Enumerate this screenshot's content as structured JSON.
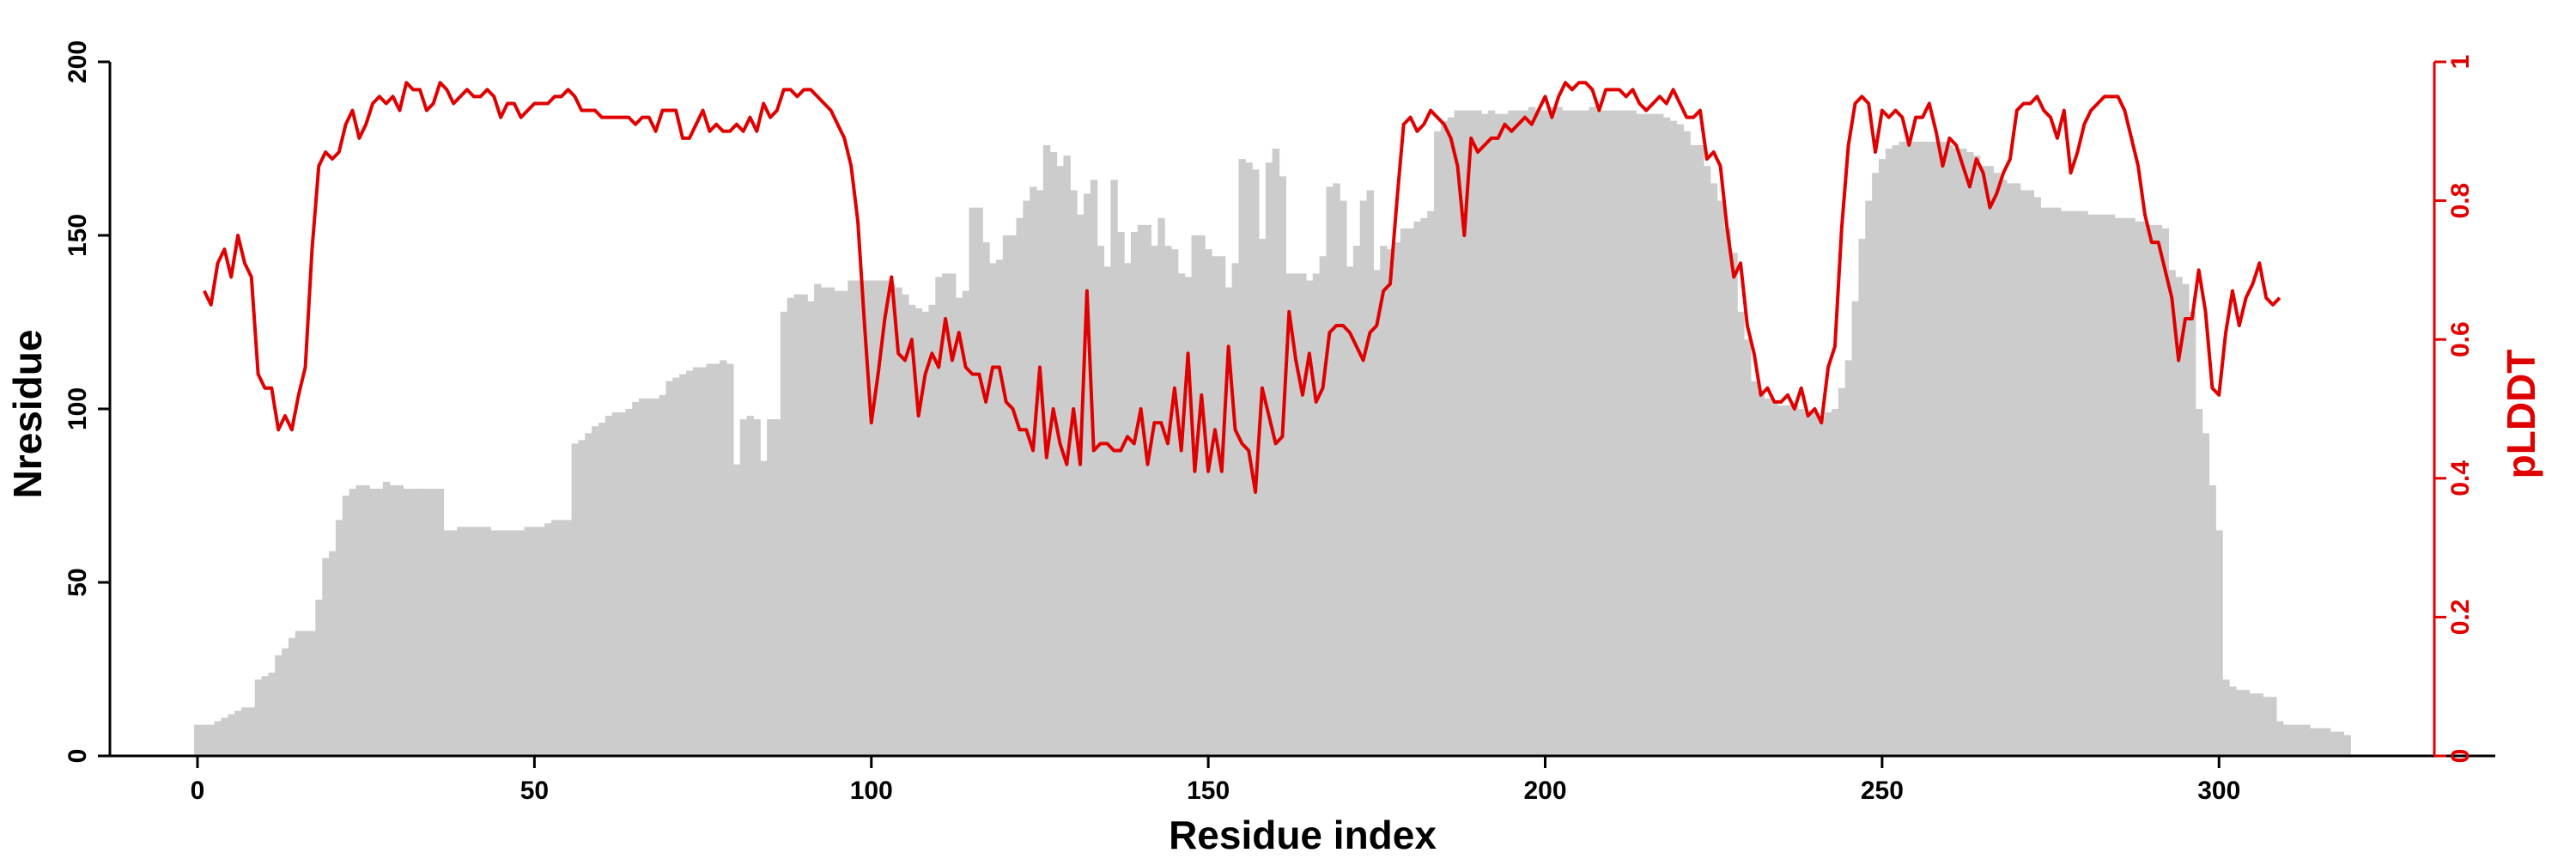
{
  "chart_data": {
    "type": "bar+line",
    "xlabel": "Residue index",
    "ylabel": "Nresidue",
    "y2label": "pLDDT",
    "xlim": [
      -13,
      341
    ],
    "xticks": [
      0,
      50,
      100,
      150,
      200,
      250,
      300
    ],
    "ylim": [
      0,
      200
    ],
    "yticks": [
      0,
      50,
      100,
      150,
      200
    ],
    "y2lim": [
      0,
      1
    ],
    "y2ticks": [
      0,
      0.2,
      0.4,
      0.6,
      0.8,
      1
    ],
    "y2ticklabels": [
      "0",
      "0.2",
      "0.4",
      "0.6",
      "0.8",
      "1"
    ],
    "colors": {
      "bars": "#cccccc",
      "line": "#e00000",
      "axis_left": "#000000",
      "axis_right": "#e00000"
    },
    "bars": {
      "name": "Nresidue",
      "x_start": 0,
      "values": [
        9,
        9,
        9,
        10,
        11,
        12,
        13,
        14,
        14,
        22,
        23,
        24,
        29,
        31,
        34,
        36,
        36,
        36,
        45,
        57,
        59,
        68,
        75,
        77,
        78,
        78,
        77,
        77,
        79,
        78,
        78,
        77,
        77,
        77,
        77,
        77,
        77,
        65,
        65,
        66,
        66,
        66,
        66,
        66,
        65,
        65,
        65,
        65,
        65,
        66,
        66,
        66,
        67,
        68,
        68,
        68,
        90,
        91,
        93,
        95,
        96,
        98,
        99,
        99,
        100,
        102,
        103,
        103,
        103,
        104,
        108,
        109,
        110,
        111,
        112,
        112,
        113,
        113,
        114,
        113,
        84,
        97,
        98,
        97,
        85,
        97,
        97,
        128,
        132,
        133,
        133,
        131,
        136,
        135,
        135,
        134,
        134,
        137,
        137,
        137,
        137,
        137,
        137,
        136,
        135,
        133,
        130,
        129,
        128,
        130,
        138,
        139,
        139,
        132,
        134,
        158,
        158,
        148,
        142,
        143,
        150,
        150,
        155,
        160,
        164,
        163,
        176,
        174,
        170,
        173,
        163,
        156,
        162,
        166,
        147,
        141,
        166,
        151,
        142,
        151,
        153,
        153,
        147,
        155,
        147,
        146,
        139,
        138,
        150,
        150,
        146,
        144,
        144,
        135,
        142,
        172,
        171,
        169,
        149,
        171,
        175,
        167,
        139,
        139,
        139,
        137,
        139,
        144,
        164,
        165,
        160,
        141,
        147,
        160,
        163,
        140,
        147,
        146,
        148,
        152,
        152,
        154,
        155,
        157,
        180,
        183,
        184,
        186,
        186,
        186,
        186,
        185,
        186,
        185,
        185,
        186,
        186,
        186,
        187,
        186,
        186,
        187,
        187,
        186,
        186,
        186,
        186,
        187,
        186,
        186,
        186,
        186,
        186,
        186,
        185,
        185,
        185,
        185,
        184,
        183,
        182,
        180,
        176,
        176,
        170,
        165,
        160,
        152,
        145,
        128,
        120,
        108,
        105,
        103,
        102,
        101,
        101,
        101,
        100,
        99,
        99,
        98,
        99,
        100,
        106,
        114,
        131,
        149,
        160,
        168,
        172,
        175,
        176,
        177,
        177,
        177,
        177,
        177,
        177,
        177,
        176,
        175,
        175,
        174,
        173,
        170,
        170,
        168,
        166,
        165,
        165,
        163,
        163,
        161,
        158,
        158,
        158,
        157,
        157,
        157,
        157,
        156,
        156,
        156,
        156,
        155,
        155,
        155,
        154,
        154,
        153,
        153,
        152,
        140,
        138,
        136,
        128,
        100,
        93,
        78,
        65,
        22,
        20,
        19,
        19,
        18,
        18,
        17,
        17,
        10,
        9,
        9,
        9,
        9,
        8,
        8,
        8,
        7,
        7,
        6
      ]
    },
    "series": [
      {
        "name": "pLDDT",
        "x_start": 1,
        "values": [
          0.67,
          0.65,
          0.71,
          0.73,
          0.69,
          0.75,
          0.71,
          0.69,
          0.55,
          0.53,
          0.53,
          0.47,
          0.49,
          0.47,
          0.52,
          0.56,
          0.73,
          0.85,
          0.87,
          0.86,
          0.87,
          0.91,
          0.93,
          0.89,
          0.91,
          0.94,
          0.95,
          0.94,
          0.95,
          0.93,
          0.97,
          0.96,
          0.96,
          0.93,
          0.94,
          0.97,
          0.96,
          0.94,
          0.95,
          0.96,
          0.95,
          0.95,
          0.96,
          0.95,
          0.92,
          0.94,
          0.94,
          0.92,
          0.93,
          0.94,
          0.94,
          0.94,
          0.95,
          0.95,
          0.96,
          0.95,
          0.93,
          0.93,
          0.93,
          0.92,
          0.92,
          0.92,
          0.92,
          0.92,
          0.91,
          0.92,
          0.92,
          0.9,
          0.93,
          0.93,
          0.93,
          0.89,
          0.89,
          0.91,
          0.93,
          0.9,
          0.91,
          0.9,
          0.9,
          0.91,
          0.9,
          0.92,
          0.9,
          0.94,
          0.92,
          0.93,
          0.96,
          0.96,
          0.95,
          0.96,
          0.96,
          0.95,
          0.94,
          0.93,
          0.91,
          0.89,
          0.85,
          0.77,
          0.62,
          0.48,
          0.55,
          0.63,
          0.69,
          0.58,
          0.57,
          0.6,
          0.49,
          0.55,
          0.58,
          0.56,
          0.63,
          0.57,
          0.61,
          0.56,
          0.55,
          0.55,
          0.51,
          0.56,
          0.56,
          0.51,
          0.5,
          0.47,
          0.47,
          0.44,
          0.56,
          0.43,
          0.5,
          0.45,
          0.42,
          0.5,
          0.42,
          0.67,
          0.44,
          0.45,
          0.45,
          0.44,
          0.44,
          0.46,
          0.45,
          0.5,
          0.42,
          0.48,
          0.48,
          0.45,
          0.53,
          0.44,
          0.58,
          0.41,
          0.52,
          0.41,
          0.47,
          0.41,
          0.59,
          0.47,
          0.45,
          0.44,
          0.38,
          0.53,
          0.49,
          0.45,
          0.46,
          0.64,
          0.57,
          0.52,
          0.58,
          0.51,
          0.53,
          0.61,
          0.62,
          0.62,
          0.61,
          0.59,
          0.57,
          0.61,
          0.62,
          0.67,
          0.68,
          0.8,
          0.91,
          0.92,
          0.9,
          0.91,
          0.93,
          0.92,
          0.91,
          0.89,
          0.85,
          0.75,
          0.89,
          0.87,
          0.88,
          0.89,
          0.89,
          0.91,
          0.9,
          0.91,
          0.92,
          0.91,
          0.93,
          0.95,
          0.92,
          0.95,
          0.97,
          0.96,
          0.97,
          0.97,
          0.96,
          0.93,
          0.96,
          0.96,
          0.96,
          0.95,
          0.96,
          0.94,
          0.93,
          0.94,
          0.95,
          0.94,
          0.96,
          0.94,
          0.92,
          0.92,
          0.93,
          0.86,
          0.87,
          0.85,
          0.76,
          0.69,
          0.71,
          0.62,
          0.58,
          0.52,
          0.53,
          0.51,
          0.51,
          0.52,
          0.5,
          0.53,
          0.49,
          0.5,
          0.48,
          0.56,
          0.59,
          0.76,
          0.88,
          0.94,
          0.95,
          0.94,
          0.87,
          0.93,
          0.92,
          0.93,
          0.92,
          0.88,
          0.92,
          0.92,
          0.94,
          0.9,
          0.85,
          0.89,
          0.88,
          0.85,
          0.82,
          0.86,
          0.84,
          0.79,
          0.81,
          0.84,
          0.86,
          0.93,
          0.94,
          0.94,
          0.95,
          0.93,
          0.92,
          0.89,
          0.93,
          0.84,
          0.87,
          0.91,
          0.93,
          0.94,
          0.95,
          0.95,
          0.95,
          0.93,
          0.89,
          0.85,
          0.78,
          0.74,
          0.74,
          0.7,
          0.66,
          0.57,
          0.63,
          0.63,
          0.7,
          0.64,
          0.53,
          0.52,
          0.61,
          0.67,
          0.62,
          0.66,
          0.68,
          0.71,
          0.66,
          0.65,
          0.66
        ]
      }
    ],
    "grid": false,
    "legend": "none"
  }
}
